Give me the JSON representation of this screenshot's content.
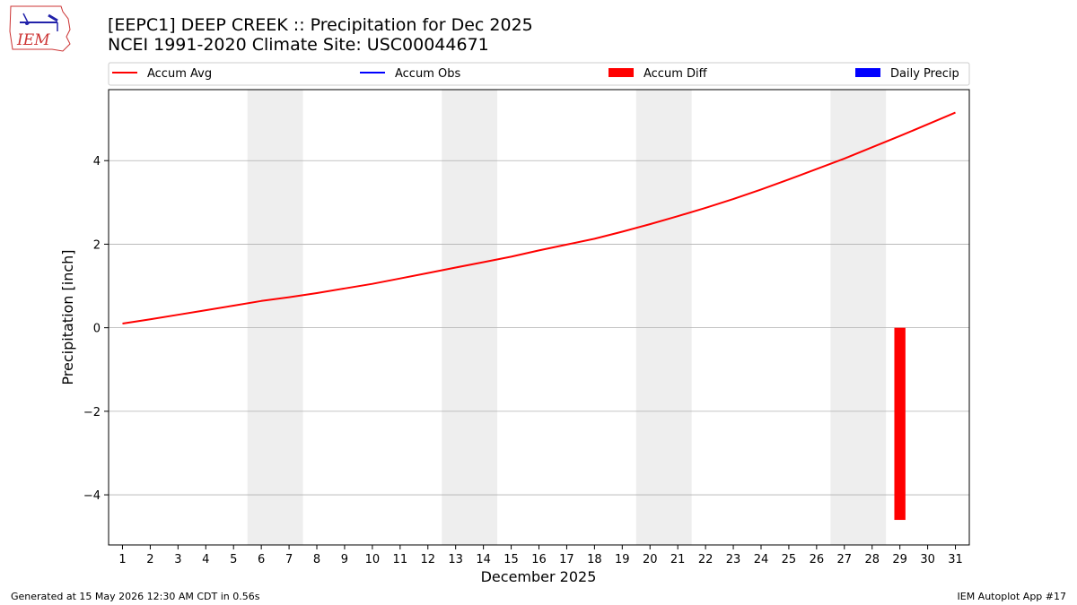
{
  "header": {
    "logo_text": "IEM",
    "title_line1": "[EEPC1] DEEP CREEK :: Precipitation for Dec 2025",
    "title_line2": "NCEI 1991-2020 Climate Site: USC00044671"
  },
  "footer": {
    "left": "Generated at 15 May 2026 12:30 AM CDT in 0.56s",
    "right": "IEM Autoplot App #17"
  },
  "chart_data": {
    "type": "line",
    "xlabel": "December 2025",
    "ylabel": "Precipitation [inch]",
    "xlim": [
      0.5,
      31.5
    ],
    "ylim": [
      -5.2,
      5.7
    ],
    "x_ticks": [
      1,
      2,
      3,
      4,
      5,
      6,
      7,
      8,
      9,
      10,
      11,
      12,
      13,
      14,
      15,
      16,
      17,
      18,
      19,
      20,
      21,
      22,
      23,
      24,
      25,
      26,
      27,
      28,
      29,
      30,
      31
    ],
    "y_ticks": [
      -4,
      -2,
      0,
      2,
      4
    ],
    "y_tick_labels": [
      "−4",
      "−2",
      "0",
      "2",
      "4"
    ],
    "grid": "horizontal",
    "weekend_shading": [
      [
        5.5,
        7.5
      ],
      [
        12.5,
        14.5
      ],
      [
        19.5,
        21.5
      ],
      [
        26.5,
        28.5
      ]
    ],
    "shade_color": "#eeeeee",
    "legend": {
      "placement": "top",
      "entries": [
        {
          "label": "Accum Avg",
          "kind": "line",
          "color": "#ff0000"
        },
        {
          "label": "Accum Obs",
          "kind": "line",
          "color": "#0000ff"
        },
        {
          "label": "Accum Diff",
          "kind": "patch",
          "color": "#ff0000"
        },
        {
          "label": "Daily Precip",
          "kind": "patch",
          "color": "#0000ff"
        }
      ]
    },
    "series": [
      {
        "name": "Accum Avg",
        "color": "#ff0000",
        "x": [
          1,
          2,
          3,
          4,
          5,
          6,
          7,
          8,
          9,
          10,
          11,
          12,
          13,
          14,
          15,
          16,
          17,
          18,
          19,
          20,
          21,
          22,
          23,
          24,
          25,
          26,
          27,
          28,
          29,
          30,
          31
        ],
        "values": [
          0.1,
          0.2,
          0.31,
          0.42,
          0.53,
          0.64,
          0.73,
          0.83,
          0.94,
          1.05,
          1.18,
          1.31,
          1.44,
          1.57,
          1.7,
          1.85,
          1.99,
          2.13,
          2.3,
          2.48,
          2.67,
          2.87,
          3.08,
          3.31,
          3.55,
          3.8,
          4.05,
          4.32,
          4.59,
          4.87,
          5.15
        ]
      }
    ],
    "bars": [
      {
        "name": "Accum Diff",
        "color": "#ff0000",
        "x": [
          29
        ],
        "values": [
          -4.6
        ],
        "offset": -0.2,
        "width": 0.4
      }
    ]
  }
}
